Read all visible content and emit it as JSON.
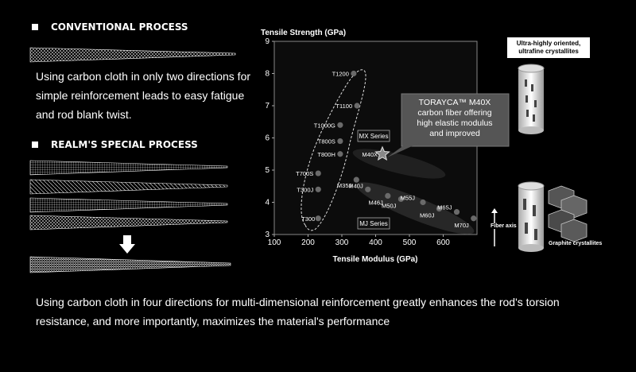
{
  "conventional": {
    "heading": "CONVENTIONAL PROCESS",
    "description_lines": [
      "Using carbon cloth in only two directions for",
      "simple reinforcement leads to easy fatigue",
      "and rod blank twist."
    ]
  },
  "special": {
    "heading": "REALM'S SPECIAL PROCESS",
    "description_lines": [
      "Using carbon cloth in four directions for multi-dimensional reinforcement greatly enhances the rod's torsion",
      "resistance, and more importantly, maximizes the material's performance"
    ]
  },
  "chart_data": {
    "type": "scatter",
    "xlabel": "Tensile Modulus (GPa)",
    "ylabel": "Tensile Strength (GPa)",
    "xlim": [
      100,
      700
    ],
    "ylim": [
      3,
      9
    ],
    "xticks": [
      100,
      200,
      300,
      400,
      500,
      600
    ],
    "yticks": [
      3,
      4,
      5,
      6,
      7,
      8,
      9
    ],
    "points": [
      {
        "label": "T1200",
        "x": 335,
        "y": 8.0
      },
      {
        "label": "T1100",
        "x": 345,
        "y": 7.0
      },
      {
        "label": "T1000G",
        "x": 295,
        "y": 6.4
      },
      {
        "label": "T800S",
        "x": 295,
        "y": 5.9
      },
      {
        "label": "T800H",
        "x": 295,
        "y": 5.5
      },
      {
        "label": "T700S",
        "x": 230,
        "y": 4.9
      },
      {
        "label": "T300J",
        "x": 230,
        "y": 4.4
      },
      {
        "label": "T300",
        "x": 230,
        "y": 3.5
      },
      {
        "label": "M35J",
        "x": 343,
        "y": 4.7
      },
      {
        "label": "M40J",
        "x": 377,
        "y": 4.4
      },
      {
        "label": "M46J",
        "x": 436,
        "y": 4.2
      },
      {
        "label": "M50J",
        "x": 475,
        "y": 4.1
      },
      {
        "label": "M55J",
        "x": 540,
        "y": 4.0
      },
      {
        "label": "M60J",
        "x": 588,
        "y": 3.8
      },
      {
        "label": "M65J",
        "x": 640,
        "y": 3.7
      },
      {
        "label": "M70J",
        "x": 690,
        "y": 3.5
      },
      {
        "label": "M40X",
        "x": 420,
        "y": 5.5
      }
    ],
    "series_labels": [
      "MX Series",
      "MJ Series"
    ],
    "callout": [
      "TORAYCA™ M40X",
      "carbon fiber offering",
      "high elastic modulus",
      "and improved"
    ],
    "grid": false,
    "colors": {
      "background": "#000000",
      "plot_bg": "#0c0c0c",
      "point": "#6a6a6a"
    }
  },
  "side_panel": {
    "top_label_lines": [
      "Ultra-highly oriented,",
      "ultrafine crystallites"
    ],
    "fiber_axis_label": "Fiber axis",
    "graphite_label": "Graphite crystallites"
  },
  "icons": {
    "arrow": "down-arrow-icon"
  }
}
